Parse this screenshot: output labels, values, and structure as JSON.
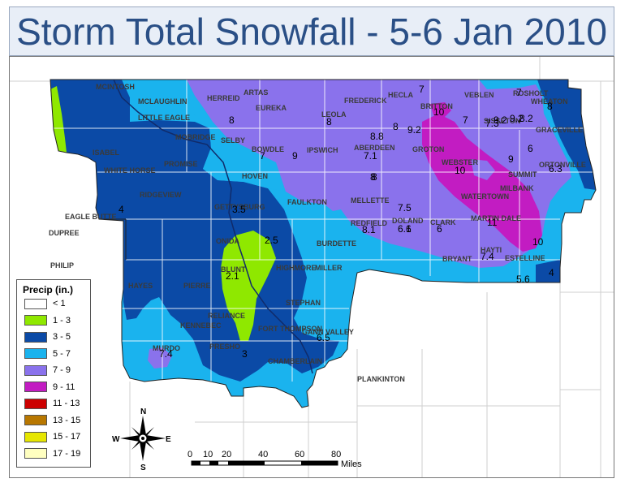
{
  "title": "Storm Total Snowfall - 5-6 Jan 2010",
  "legend": {
    "title": "Precip (in.)",
    "items": [
      {
        "label": "< 1",
        "color": "#ffffff"
      },
      {
        "label": "1 - 3",
        "color": "#8fe800"
      },
      {
        "label": "3 - 5",
        "color": "#0b4aa6"
      },
      {
        "label": "5 - 7",
        "color": "#1ab3ee"
      },
      {
        "label": "7 - 9",
        "color": "#8a72ec"
      },
      {
        "label": "9 - 11",
        "color": "#c21cc2"
      },
      {
        "label": "11 - 13",
        "color": "#cc0000"
      },
      {
        "label": "13 - 15",
        "color": "#b87700"
      },
      {
        "label": "15 - 17",
        "color": "#e6e600"
      },
      {
        "label": "17 - 19",
        "color": "#ffffc0"
      }
    ]
  },
  "compass": {
    "n": "N",
    "s": "S",
    "e": "E",
    "w": "W"
  },
  "scale": {
    "ticks": [
      "0",
      "10",
      "20",
      "40",
      "60",
      "80"
    ],
    "unit": "Miles"
  },
  "places": [
    "MCINTOSH",
    "MCLAUGHLIN",
    "LITTLE EAGLE",
    "HERREID",
    "ARTAS",
    "EUREKA",
    "HECLA",
    "BRITTON",
    "VEBLEN",
    "ROSHOLT",
    "WHEATON",
    "MOBRIDGE",
    "SELBY",
    "LEOLA",
    "FREDERICK",
    "SISSETON",
    "GRACEVILLE",
    "ISABEL",
    "PROMISE",
    "BOWDLE",
    "IPSWICH",
    "ABERDEEN",
    "GROTON",
    "WEBSTER",
    "SUMMIT",
    "ORTONVILLE",
    "WHITE HORSE",
    "HOVEN",
    "FAULKTON",
    "MELLETTE",
    "MILBANK",
    "RIDGEVIEW",
    "GETTYSBURG",
    "REDFIELD",
    "DOLAND",
    "CLARK",
    "WATERTOWN",
    "MARTIN DALE",
    "ONIDA",
    "BURDETTE",
    "HAYTI",
    "BLUNT",
    "HIGHMORE",
    "MILLER",
    "BRYANT",
    "ESTELLINE",
    "HAYES",
    "PIERRE",
    "STEPHAN",
    "FORT THOMPSON",
    "GANN VALLEY",
    "PRESHO",
    "MURDO",
    "RELIANCE",
    "KENNEBEC",
    "CHAMBERLAIN",
    "PLANKINTON",
    "KADOKA",
    "PHILIP",
    "FAITH",
    "DUPREE",
    "EAGLE BUTTE"
  ],
  "snow_values": [
    "7",
    "7",
    "8",
    "8",
    "7",
    "10",
    "9.2",
    "8",
    "8.8",
    "8",
    "7",
    "7.1",
    "9",
    "10",
    "9",
    "9.2",
    "8",
    "9.2",
    "6",
    "6.3",
    "4",
    "3.5",
    "2.5",
    "8",
    "7.5",
    "6",
    "6.1",
    "8.1",
    "6",
    "11",
    "10",
    "7.4",
    "5.6",
    "4",
    "2.1",
    "6.5",
    "3",
    "7.4",
    "8.2",
    "7.3"
  ]
}
